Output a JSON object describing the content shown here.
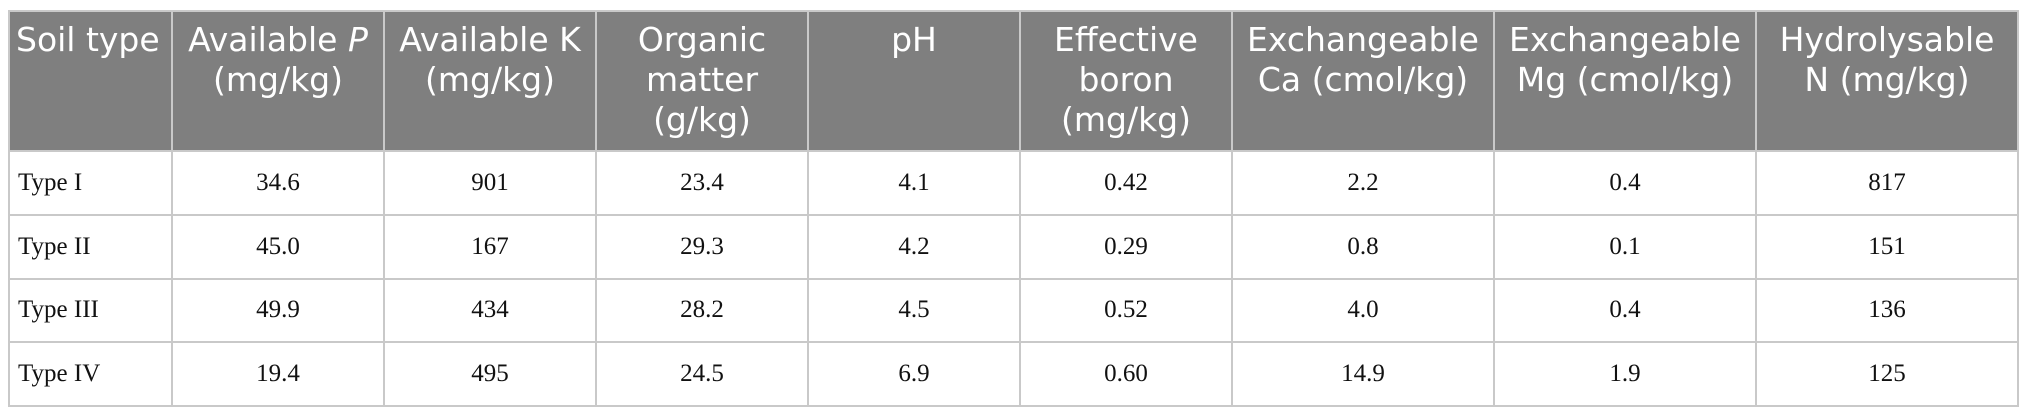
{
  "table": {
    "headers": [
      {
        "main": "Soil type",
        "italic": "",
        "rest": ""
      },
      {
        "main": "Available ",
        "italic": "P",
        "rest": "(mg/kg)"
      },
      {
        "main": "Available K",
        "italic": "",
        "rest": "(mg/kg)"
      },
      {
        "main": "Organic matter (g/kg)",
        "italic": "",
        "rest": ""
      },
      {
        "main": "pH",
        "italic": "",
        "rest": ""
      },
      {
        "main": "Effective boron (mg/kg)",
        "italic": "",
        "rest": ""
      },
      {
        "main": "Exchangeable Ca (cmol/kg)",
        "italic": "",
        "rest": ""
      },
      {
        "main": "Exchangeable Mg (cmol/kg)",
        "italic": "",
        "rest": ""
      },
      {
        "main": "Hydrolysable N (mg/kg)",
        "italic": "",
        "rest": ""
      }
    ],
    "rows": [
      [
        "Type I",
        "34.6",
        "901",
        "23.4",
        "4.1",
        "0.42",
        "2.2",
        "0.4",
        "817"
      ],
      [
        "Type II",
        "45.0",
        "167",
        "29.3",
        "4.2",
        "0.29",
        "0.8",
        "0.1",
        "151"
      ],
      [
        "Type III",
        "49.9",
        "434",
        "28.2",
        "4.5",
        "0.52",
        "4.0",
        "0.4",
        "136"
      ],
      [
        "Type IV",
        "19.4",
        "495",
        "24.5",
        "6.9",
        "0.60",
        "14.9",
        "1.9",
        "125"
      ]
    ]
  }
}
